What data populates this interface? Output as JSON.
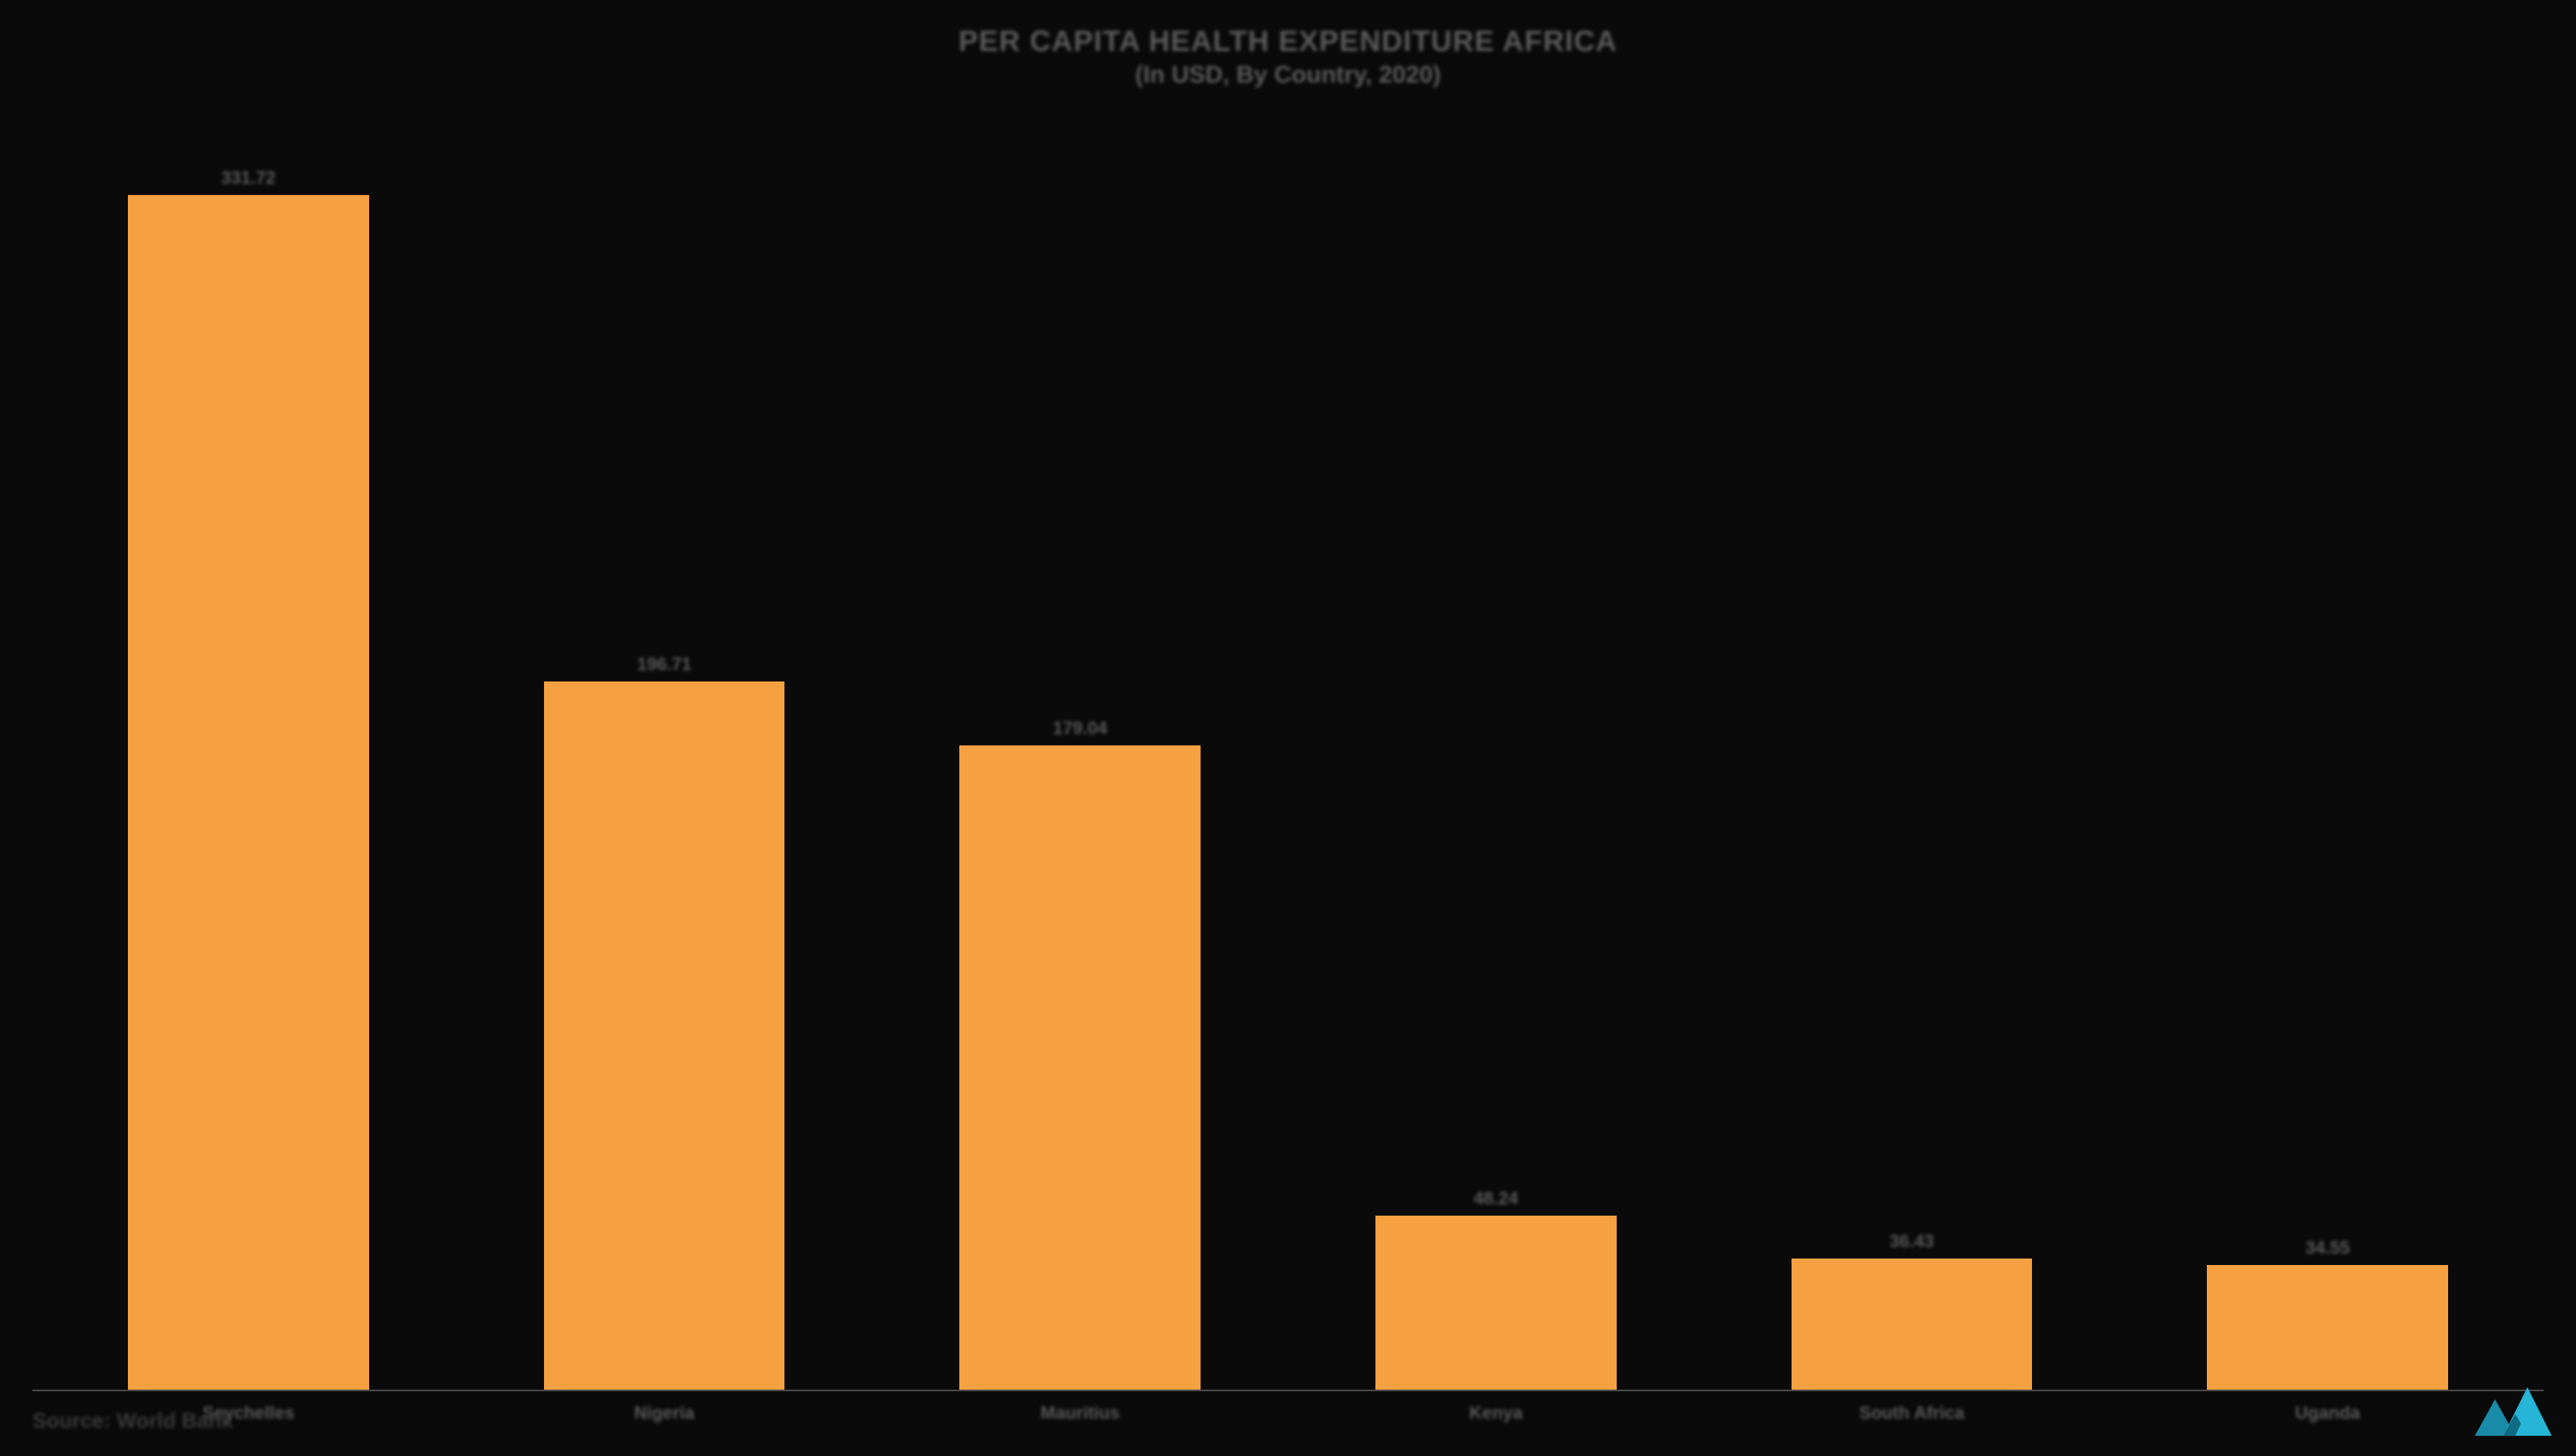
{
  "chart": {
    "type": "bar",
    "title": "PER CAPITA HEALTH EXPENDITURE AFRICA",
    "subtitle": "(In USD, By Country, 2020)",
    "title_fontsize": 36,
    "subtitle_fontsize": 30,
    "title_color": "#5a5a5a",
    "background_color": "#0a0a0a",
    "axis_color": "#4a4a4a",
    "bar_color": "#f5a142",
    "bar_width_pct": 58,
    "label_fontsize": 22,
    "value_fontsize": 22,
    "label_color": "#5a5a5a",
    "ylim": [
      0,
      350
    ],
    "categories": [
      "Seychelles",
      "Nigeria",
      "Mauritius",
      "Kenya",
      "South Africa",
      "Uganda"
    ],
    "values": [
      331.72,
      196.71,
      179.04,
      48.24,
      36.43,
      34.55
    ],
    "value_labels": [
      "331.72",
      "196.71",
      "179.04",
      "48.24",
      "36.43",
      "34.55"
    ],
    "grid": false
  },
  "source": {
    "label": "Source: World Bank",
    "fontsize": 26,
    "color": "#3a3a3a"
  },
  "logo": {
    "name": "mordor-intelligence-logo",
    "primary_color": "#1a8ba8",
    "secondary_color": "#26b5d6"
  }
}
